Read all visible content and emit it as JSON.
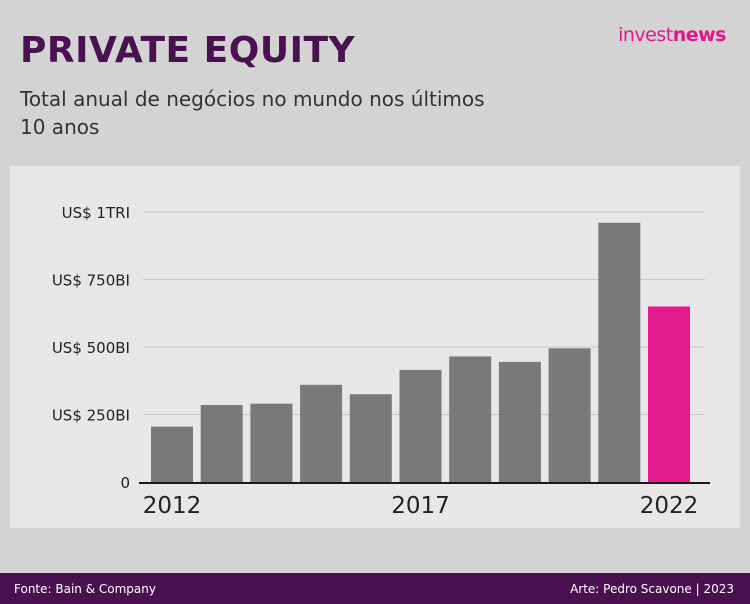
{
  "header": {
    "title": "PRIVATE EQUITY",
    "subtitle": "Total anual de negócios no mundo nos últimos 10 anos"
  },
  "logo": {
    "part1": "invest",
    "part2": "news"
  },
  "footer": {
    "source": "Fonte: Bain & Company",
    "credit": "Arte: Pedro Scavone | 2023"
  },
  "colors": {
    "bar": "#797979",
    "highlight": "#e41b8d",
    "grid": "#c9c7c8",
    "axis": "#1a1a1a",
    "brand": "#4a1150"
  },
  "chart_data": {
    "type": "bar",
    "title": "PRIVATE EQUITY",
    "subtitle": "Total anual de negócios no mundo nos últimos 10 anos",
    "unit": "US$ bilhões",
    "categories": [
      "2012",
      "2013",
      "2014",
      "2015",
      "2016",
      "2017",
      "2018",
      "2019",
      "2020",
      "2021",
      "2022"
    ],
    "values": [
      205,
      285,
      290,
      360,
      325,
      415,
      465,
      445,
      495,
      960,
      650
    ],
    "highlight_index": 10,
    "xtick_labels": [
      {
        "category": "2012",
        "label": "2012"
      },
      {
        "category": "2017",
        "label": "2017"
      },
      {
        "category": "2022",
        "label": "2022"
      }
    ],
    "yticks": [
      {
        "value": 0,
        "label": "0"
      },
      {
        "value": 250,
        "label": "US$ 250BI"
      },
      {
        "value": 500,
        "label": "US$ 500BI"
      },
      {
        "value": 750,
        "label": "US$ 750BI"
      },
      {
        "value": 1000,
        "label": "US$ 1TRI"
      }
    ],
    "ylim": [
      0,
      1000
    ],
    "grid": true
  }
}
